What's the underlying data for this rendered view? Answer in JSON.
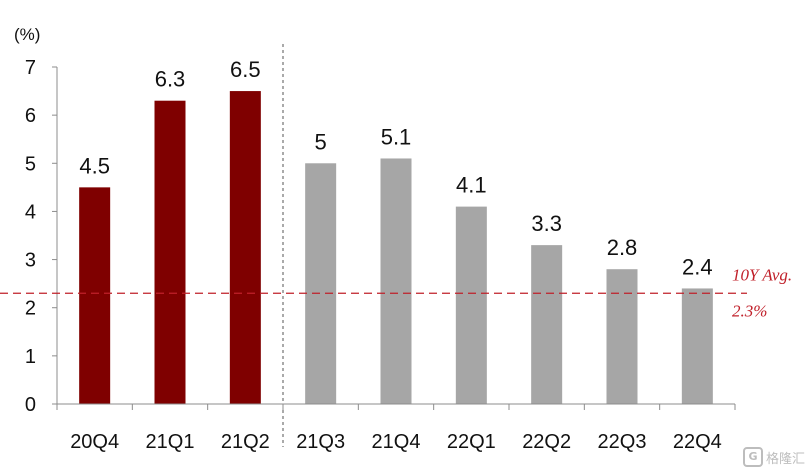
{
  "chart_data": {
    "type": "bar",
    "unit_label": "(%)",
    "categories": [
      "20Q4",
      "21Q1",
      "21Q2",
      "21Q3",
      "21Q4",
      "22Q1",
      "22Q2",
      "22Q3",
      "22Q4"
    ],
    "values": [
      4.5,
      6.3,
      6.5,
      5,
      5.1,
      4.1,
      3.3,
      2.8,
      2.4
    ],
    "data_labels": [
      "4.5",
      "6.3",
      "6.5",
      "5",
      "5.1",
      "4.1",
      "3.3",
      "2.8",
      "2.4"
    ],
    "ylim": [
      0,
      7
    ],
    "yticks": [
      0,
      1,
      2,
      3,
      4,
      5,
      6,
      7
    ],
    "grid": false,
    "actual_count": 3,
    "colors": {
      "actual": "#7f0000",
      "forecast": "#a6a6a6",
      "avg_line": "#c0202a",
      "divider": "#555555"
    },
    "reference_line": {
      "value": 2.3,
      "label_line1": "10Y Avg.",
      "label_line2": "2.3%"
    }
  },
  "watermark": {
    "icon": "G",
    "text": "格隆汇"
  }
}
